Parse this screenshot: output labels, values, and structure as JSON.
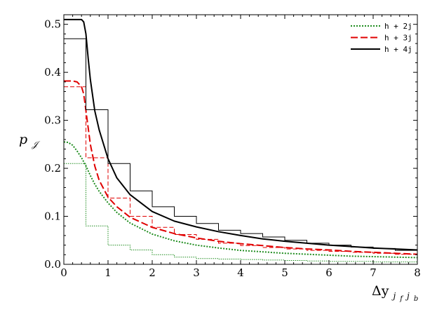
{
  "chart_data": {
    "type": "line",
    "xlabel": "Δy",
    "xlabel_sub": "j",
    "xlabel_subsub": "f",
    "xlabel_subsub2": "b",
    "ylabel": "p",
    "ylabel_sub": "𝒥",
    "xlim": [
      0,
      8
    ],
    "ylim": [
      0,
      0.52
    ],
    "xticks": [
      0,
      1,
      2,
      3,
      4,
      5,
      6,
      7,
      8
    ],
    "yticks": [
      0.0,
      0.1,
      0.2,
      0.3,
      0.4,
      0.5
    ],
    "ytick_labels": [
      "0.0",
      "0.1",
      "0.2",
      "0.3",
      "0.4",
      "0.5"
    ],
    "grid": false,
    "legend_position": "top-right",
    "series": [
      {
        "name": "h + 2j",
        "color": "#1e8c1e",
        "style": "dotted",
        "curve": {
          "x": [
            0,
            0.1,
            0.2,
            0.3,
            0.4,
            0.5,
            0.6,
            0.7,
            0.8,
            1.0,
            1.2,
            1.5,
            2.0,
            2.5,
            3.0,
            3.5,
            4.0,
            4.5,
            5.0,
            5.5,
            6.0,
            6.5,
            7.0,
            7.5,
            8.0
          ],
          "y": [
            0.255,
            0.254,
            0.248,
            0.236,
            0.222,
            0.205,
            0.185,
            0.167,
            0.152,
            0.128,
            0.108,
            0.086,
            0.063,
            0.049,
            0.04,
            0.034,
            0.029,
            0.026,
            0.023,
            0.021,
            0.019,
            0.017,
            0.016,
            0.015,
            0.014
          ]
        },
        "histogram": {
          "edges": [
            0,
            0.5,
            1.0,
            1.5,
            2.0,
            2.5,
            3.0,
            3.5,
            4.0,
            4.5,
            5.0,
            5.5,
            6.0,
            6.5,
            7.0,
            7.5,
            8.0
          ],
          "values": [
            0.21,
            0.08,
            0.04,
            0.03,
            0.02,
            0.015,
            0.012,
            0.011,
            0.01,
            0.009,
            0.008,
            0.007,
            0.006,
            0.006,
            0.005,
            0.005
          ]
        }
      },
      {
        "name": "h + 3j",
        "color": "#e00000",
        "style": "dashed",
        "curve": {
          "x": [
            0,
            0.1,
            0.2,
            0.3,
            0.4,
            0.45,
            0.5,
            0.6,
            0.7,
            0.8,
            1.0,
            1.2,
            1.5,
            2.0,
            2.5,
            3.0,
            3.5,
            4.0,
            4.5,
            5.0,
            5.5,
            6.0,
            6.5,
            7.0,
            7.5,
            8.0
          ],
          "y": [
            0.382,
            0.382,
            0.382,
            0.38,
            0.37,
            0.355,
            0.32,
            0.25,
            0.205,
            0.175,
            0.14,
            0.12,
            0.098,
            0.077,
            0.064,
            0.055,
            0.048,
            0.043,
            0.039,
            0.035,
            0.032,
            0.03,
            0.027,
            0.025,
            0.023,
            0.021
          ]
        },
        "histogram": {
          "edges": [
            0,
            0.5,
            1.0,
            1.5,
            2.0,
            2.5,
            3.0,
            3.5,
            4.0,
            4.5,
            5.0,
            5.5,
            6.0,
            6.5,
            7.0,
            7.5,
            8.0
          ],
          "values": [
            0.37,
            0.222,
            0.138,
            0.1,
            0.077,
            0.062,
            0.052,
            0.044,
            0.039,
            0.035,
            0.032,
            0.029,
            0.027,
            0.025,
            0.023,
            0.021
          ]
        }
      },
      {
        "name": "h + 4j",
        "color": "#000000",
        "style": "solid",
        "curve": {
          "x": [
            0,
            0.1,
            0.2,
            0.3,
            0.4,
            0.45,
            0.5,
            0.55,
            0.6,
            0.7,
            0.8,
            1.0,
            1.2,
            1.5,
            2.0,
            2.5,
            3.0,
            3.5,
            4.0,
            4.5,
            5.0,
            5.5,
            6.0,
            6.5,
            7.0,
            7.5,
            8.0
          ],
          "y": [
            0.51,
            0.51,
            0.51,
            0.51,
            0.51,
            0.505,
            0.48,
            0.43,
            0.385,
            0.32,
            0.28,
            0.22,
            0.18,
            0.145,
            0.11,
            0.09,
            0.078,
            0.068,
            0.06,
            0.053,
            0.048,
            0.044,
            0.04,
            0.037,
            0.034,
            0.032,
            0.03
          ]
        },
        "histogram": {
          "edges": [
            0,
            0.5,
            1.0,
            1.5,
            2.0,
            2.5,
            3.0,
            3.5,
            4.0,
            4.5,
            5.0,
            5.5,
            6.0,
            6.5,
            7.0,
            7.5,
            8.0
          ],
          "values": [
            0.47,
            0.322,
            0.21,
            0.153,
            0.12,
            0.1,
            0.085,
            0.071,
            0.064,
            0.057,
            0.05,
            0.044,
            0.04,
            0.036,
            0.033,
            0.029
          ]
        }
      }
    ]
  }
}
